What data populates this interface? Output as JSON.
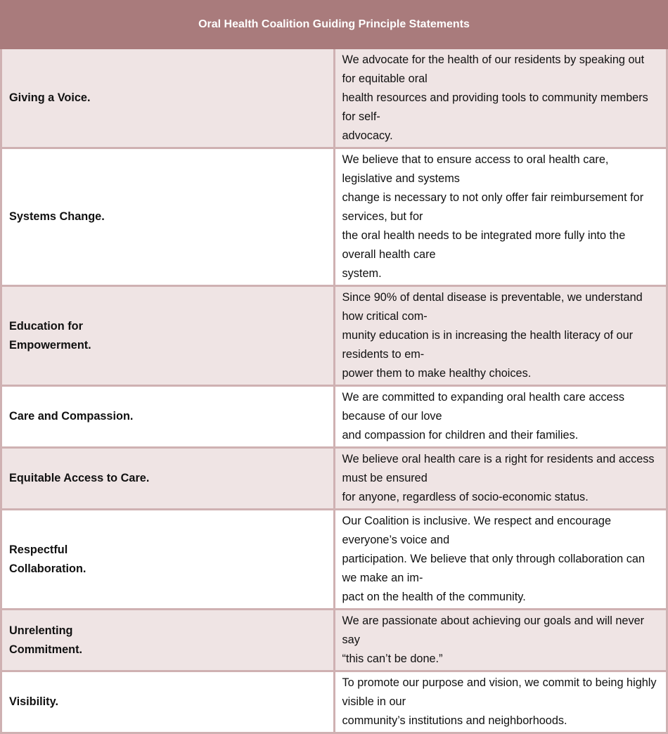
{
  "title": "Oral Health Coalition Guiding Principle Statements",
  "colors": {
    "header": "#a97b7c",
    "shaded_row": "#efe4e4",
    "border": "#cfb1b2"
  },
  "rows": [
    {
      "principle": "Giving a Voice.",
      "statement": "We advocate for the health of our residents by speaking out for equitable oral\nhealth resources and providing tools to community members for self-\nadvocacy."
    },
    {
      "principle": "Systems Change.",
      "statement": "We believe that to ensure access to oral health care, legislative and systems\nchange is necessary to not only offer fair reimbursement for services, but for\nthe oral health needs to be integrated more fully into the overall health care\nsystem."
    },
    {
      "principle": "Education for\nEmpowerment.",
      "statement": "Since 90% of dental disease is preventable, we understand how critical com-\nmunity education is in increasing the health literacy of our residents to em-\npower them to make healthy choices."
    },
    {
      "principle": "Care and Compassion.",
      "statement": "We are committed to expanding oral health care access because of our love\nand compassion for children and their families."
    },
    {
      "principle": "Equitable Access to Care.",
      "statement": "We believe oral health care is a right for residents and access must be ensured\nfor anyone, regardless of socio-economic status."
    },
    {
      "principle": "Respectful\nCollaboration.",
      "statement": "Our Coalition is inclusive. We respect and encourage everyone’s voice and\nparticipation. We believe that only through collaboration can we make an im-\npact on the health of the community."
    },
    {
      "principle": "Unrelenting\nCommitment.",
      "statement": "We are passionate about achieving our goals and will never say\n“this can’t be done.”"
    },
    {
      "principle": "Visibility.",
      "statement": "To promote our purpose and vision, we commit to being highly visible in our\ncommunity’s institutions and neighborhoods."
    }
  ]
}
